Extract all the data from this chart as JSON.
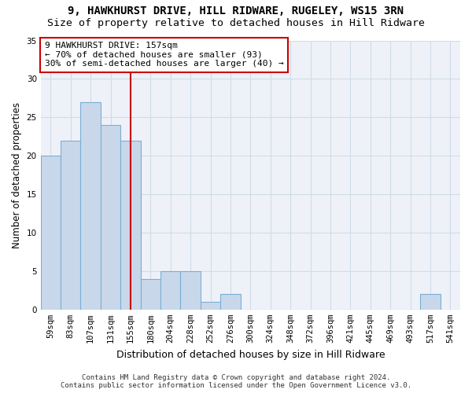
{
  "title": "9, HAWKHURST DRIVE, HILL RIDWARE, RUGELEY, WS15 3RN",
  "subtitle": "Size of property relative to detached houses in Hill Ridware",
  "xlabel": "Distribution of detached houses by size in Hill Ridware",
  "ylabel": "Number of detached properties",
  "footer_line1": "Contains HM Land Registry data © Crown copyright and database right 2024.",
  "footer_line2": "Contains public sector information licensed under the Open Government Licence v3.0.",
  "bin_labels": [
    "59sqm",
    "83sqm",
    "107sqm",
    "131sqm",
    "155sqm",
    "180sqm",
    "204sqm",
    "228sqm",
    "252sqm",
    "276sqm",
    "300sqm",
    "324sqm",
    "348sqm",
    "372sqm",
    "396sqm",
    "421sqm",
    "445sqm",
    "469sqm",
    "493sqm",
    "517sqm",
    "541sqm"
  ],
  "bar_values": [
    20,
    22,
    27,
    24,
    22,
    4,
    5,
    5,
    1,
    2,
    0,
    0,
    0,
    0,
    0,
    0,
    0,
    0,
    0,
    2,
    0
  ],
  "bar_color": "#c8d8ea",
  "bar_edge_color": "#7bafd4",
  "grid_color": "#d0dce8",
  "background_color": "#ffffff",
  "plot_bg_color": "#eef2f8",
  "vline_color": "#cc0000",
  "vline_position": 4.5,
  "annotation_text": "9 HAWKHURST DRIVE: 157sqm\n← 70% of detached houses are smaller (93)\n30% of semi-detached houses are larger (40) →",
  "annotation_box_color": "white",
  "annotation_box_edge_color": "#cc0000",
  "ylim": [
    0,
    35
  ],
  "yticks": [
    0,
    5,
    10,
    15,
    20,
    25,
    30,
    35
  ],
  "title_fontsize": 10,
  "subtitle_fontsize": 9.5,
  "xlabel_fontsize": 9,
  "ylabel_fontsize": 8.5,
  "tick_fontsize": 7.5,
  "annotation_fontsize": 8,
  "footer_fontsize": 6.5
}
